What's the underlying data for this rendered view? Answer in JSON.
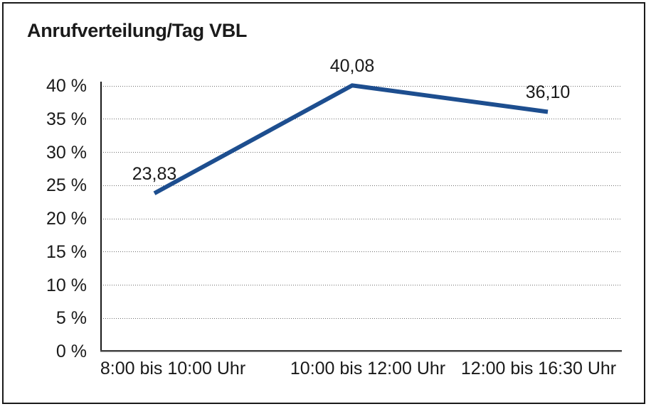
{
  "frame": {
    "background_color": "#ffffff",
    "border_color": "#1a1a1a"
  },
  "chart_data": {
    "type": "line",
    "title": "Anrufverteilung/Tag VBL",
    "categories": [
      "8:00 bis 10:00 Uhr",
      "10:00 bis 12:00 Uhr",
      "12:00 bis 16:30 Uhr"
    ],
    "values": [
      23.83,
      40.08,
      36.1
    ],
    "data_labels": [
      "23,83",
      "40,08",
      "36,10"
    ],
    "xlabel": "",
    "ylabel": "",
    "ylim": [
      0,
      40
    ],
    "y_tick_step": 5,
    "y_tick_labels": [
      "0 %",
      "5 %",
      "10 %",
      "15 %",
      "20 %",
      "25 %",
      "30 %",
      "35 %",
      "40 %"
    ],
    "grid": true,
    "gridline_style": "dotted",
    "legend": "none",
    "line_color": "#1d4e8f",
    "line_width": 6,
    "text_color": "#1a1a1a",
    "gridline_color": "#6f6f6f"
  }
}
